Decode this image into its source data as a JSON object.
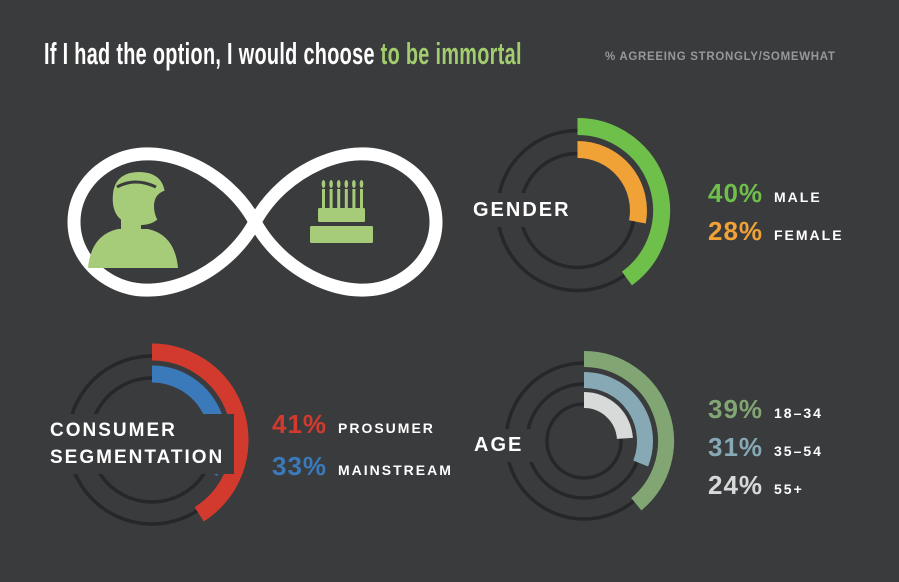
{
  "page": {
    "bg_color": "#3a3b3d",
    "ring_color": "#26272a",
    "text_white": "#ffffff",
    "subtitle_gray": "#96989b",
    "accent_green": "#a2cd6e",
    "icon_green": "#a6cc79",
    "infinity_color": "#ffffff"
  },
  "header": {
    "title_main": "If I had the option, I would choose ",
    "title_accent": "to be immortal",
    "subtitle": "% AGREEING STRONGLY/SOMEWHAT"
  },
  "infinity_graphic": {
    "icons": [
      "person-silhouette",
      "birthday-cake"
    ]
  },
  "chart_data": [
    {
      "type": "donut",
      "id": "gender",
      "label": "GENDER",
      "label_lines": [
        "GENDER"
      ],
      "start_angle_deg": 0,
      "direction": "clockwise",
      "band_width": 17,
      "rings": [
        {
          "name": "MALE",
          "value_pct": 40,
          "color": "#6fbf4b",
          "ring_radius": 80
        },
        {
          "name": "FEMALE",
          "value_pct": 28,
          "color": "#f0a236",
          "ring_radius": 57
        }
      ]
    },
    {
      "type": "donut",
      "id": "consumer-segmentation",
      "label": "CONSUMER SEGMENTATION",
      "label_lines": [
        "CONSUMER",
        "SEGMENTATION"
      ],
      "start_angle_deg": 0,
      "direction": "clockwise",
      "band_width": 17,
      "rings": [
        {
          "name": "PROSUMER",
          "value_pct": 41,
          "color": "#d23a2e",
          "ring_radius": 84
        },
        {
          "name": "MAINSTREAM",
          "value_pct": 33,
          "color": "#3a79ba",
          "ring_radius": 62
        }
      ]
    },
    {
      "type": "donut",
      "id": "age",
      "label": "AGE",
      "label_lines": [
        "AGE"
      ],
      "start_angle_deg": 0,
      "direction": "clockwise",
      "band_width": 16,
      "rings": [
        {
          "name": "18–34",
          "value_pct": 39,
          "color": "#81a674",
          "ring_radius": 78
        },
        {
          "name": "35–54",
          "value_pct": 31,
          "color": "#86a9b5",
          "ring_radius": 57
        },
        {
          "name": "55+",
          "value_pct": 24,
          "color": "#d8dad9",
          "ring_radius": 37
        }
      ]
    }
  ]
}
